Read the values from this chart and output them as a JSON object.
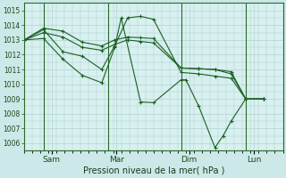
{
  "background_color": "#cce8e8",
  "plot_bg": "#d8f0f0",
  "grid_color": "#a8cccc",
  "line_color": "#1a6020",
  "xlabel": "Pression niveau de la mer( hPa )",
  "ylim": [
    1005.5,
    1015.5
  ],
  "yticks": [
    1006,
    1007,
    1008,
    1009,
    1010,
    1011,
    1012,
    1013,
    1014,
    1015
  ],
  "xlim": [
    0,
    8.0
  ],
  "xtick_labels": [
    "Sam",
    "Mar",
    "Dim",
    "Lun"
  ],
  "xtick_positions": [
    0.85,
    2.85,
    5.1,
    7.1
  ],
  "vline_positions": [
    0.6,
    2.6,
    4.85,
    6.85
  ],
  "lines": [
    {
      "x": [
        0.0,
        0.6,
        1.2,
        1.8,
        2.4,
        2.8,
        3.2,
        3.6,
        4.0,
        4.85,
        5.4,
        5.9,
        6.4,
        6.85,
        7.4
      ],
      "y": [
        1013.0,
        1013.8,
        1013.6,
        1012.85,
        1012.6,
        1013.0,
        1013.2,
        1013.15,
        1013.1,
        1011.1,
        1011.05,
        1011.0,
        1010.85,
        1009.0,
        1009.0
      ]
    },
    {
      "x": [
        0.0,
        0.6,
        1.2,
        1.8,
        2.4,
        2.8,
        3.2,
        3.6,
        4.0,
        4.85,
        5.4,
        5.9,
        6.4,
        6.85,
        7.4
      ],
      "y": [
        1013.0,
        1013.5,
        1013.2,
        1012.5,
        1012.3,
        1012.7,
        1013.0,
        1012.9,
        1012.8,
        1011.1,
        1011.05,
        1011.0,
        1010.7,
        1009.0,
        1009.0
      ]
    },
    {
      "x": [
        0.0,
        0.6,
        1.2,
        1.8,
        2.4,
        2.8,
        3.2,
        3.6,
        4.0,
        4.85,
        5.4,
        5.9,
        6.4,
        6.85,
        7.4
      ],
      "y": [
        1013.0,
        1013.7,
        1012.2,
        1011.9,
        1011.0,
        1012.6,
        1014.5,
        1014.6,
        1014.4,
        1010.8,
        1010.7,
        1010.55,
        1010.4,
        1009.0,
        1009.0
      ]
    },
    {
      "x": [
        0.0,
        0.6,
        1.2,
        1.8,
        2.4,
        2.8,
        3.0,
        3.6,
        4.0,
        4.85,
        5.0,
        5.4,
        5.9,
        6.15,
        6.4,
        6.85,
        7.4
      ],
      "y": [
        1013.0,
        1013.1,
        1011.7,
        1010.6,
        1010.1,
        1012.5,
        1014.5,
        1008.8,
        1008.75,
        1010.3,
        1010.3,
        1008.5,
        1005.7,
        1006.5,
        1007.5,
        1009.0,
        1009.0
      ]
    }
  ]
}
